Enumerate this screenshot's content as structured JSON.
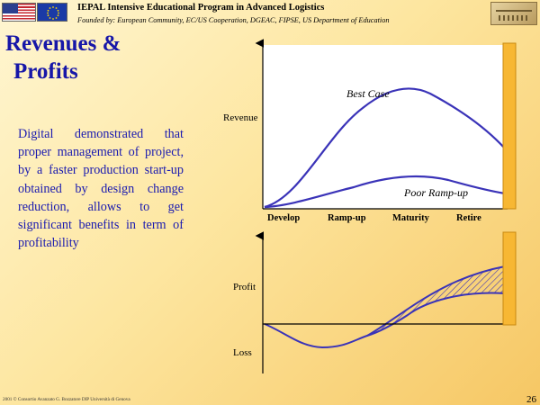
{
  "header": {
    "title": "IEPAL Intensive Educational Program in Advanced Logistics",
    "subtitle": "Founded by: European Community, EC/US Cooperation, DGEAC, FIPSE, US Department of Education"
  },
  "slide": {
    "heading_line1": "Revenues &",
    "heading_line2": "Profits",
    "body": "Digital demonstrated that proper management of project, by a faster production start-up obtained by design change reduction, allows to get significant benefits in term of profitability"
  },
  "diagram": {
    "revenue_label": "Revenue",
    "best_case_label": "Best Case",
    "poor_rampup_label": "Poor Ramp-up",
    "phases": [
      "Develop",
      "Ramp-up",
      "Maturity",
      "Retire"
    ],
    "profit_label": "Profit",
    "loss_label": "Loss",
    "colors": {
      "axis": "#000000",
      "curve": "#3a33b8",
      "hatch": "#3a33b8",
      "bar_fill": "#f7b733",
      "bar_stroke": "#c98a10"
    }
  },
  "footer": {
    "copyright": "2001 © Consortio Avanzato G. Bozzatore DIP Università di Genova",
    "page_number": "26"
  }
}
